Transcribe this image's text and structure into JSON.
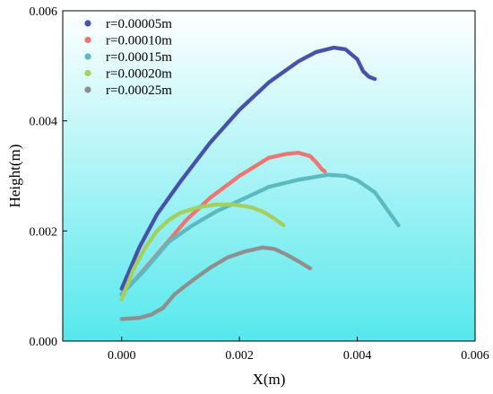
{
  "chart_data": {
    "type": "scatter",
    "xlabel": "X(m)",
    "ylabel": "Height(m)",
    "xlim": [
      -0.001,
      0.006
    ],
    "ylim": [
      0.0,
      0.006
    ],
    "xticks": [
      "0.000",
      "0.002",
      "0.004",
      "0.006"
    ],
    "yticks": [
      "0.000",
      "0.002",
      "0.004",
      "0.006"
    ],
    "xtick_values": [
      0.0,
      0.002,
      0.004,
      0.006
    ],
    "ytick_values": [
      0.0,
      0.002,
      0.004,
      0.006
    ],
    "grid": false,
    "legend_position": "top-left",
    "background": {
      "top": "#ffffff",
      "bottom": "#55e8ec"
    },
    "series": [
      {
        "name": "r=0.00005m",
        "color": "#4650a8",
        "points": [
          [
            0.0,
            0.00095
          ],
          [
            0.0003,
            0.0017
          ],
          [
            0.0006,
            0.0023
          ],
          [
            0.001,
            0.0029
          ],
          [
            0.0015,
            0.0036
          ],
          [
            0.002,
            0.0042
          ],
          [
            0.0025,
            0.0047
          ],
          [
            0.003,
            0.00508
          ],
          [
            0.0033,
            0.00525
          ],
          [
            0.0036,
            0.00533
          ],
          [
            0.0038,
            0.0053
          ],
          [
            0.004,
            0.00512
          ],
          [
            0.0041,
            0.0049
          ],
          [
            0.0042,
            0.0048
          ],
          [
            0.0043,
            0.00476
          ]
        ]
      },
      {
        "name": "r=0.00010m",
        "color": "#ee7470",
        "points": [
          [
            0.0,
            0.00085
          ],
          [
            0.0003,
            0.0012
          ],
          [
            0.0007,
            0.0017
          ],
          [
            0.0011,
            0.0022
          ],
          [
            0.0015,
            0.0026
          ],
          [
            0.002,
            0.003
          ],
          [
            0.0025,
            0.00333
          ],
          [
            0.0028,
            0.0034
          ],
          [
            0.003,
            0.00342
          ],
          [
            0.0032,
            0.00336
          ],
          [
            0.0033,
            0.00325
          ],
          [
            0.0034,
            0.00312
          ],
          [
            0.00345,
            0.00308
          ]
        ]
      },
      {
        "name": "r=0.00015m",
        "color": "#5bbac0",
        "points": [
          [
            0.0,
            0.00085
          ],
          [
            0.0004,
            0.0013
          ],
          [
            0.0008,
            0.0018
          ],
          [
            0.0012,
            0.0021
          ],
          [
            0.0016,
            0.00235
          ],
          [
            0.002,
            0.00255
          ],
          [
            0.0025,
            0.0028
          ],
          [
            0.003,
            0.00293
          ],
          [
            0.0035,
            0.00302
          ],
          [
            0.0038,
            0.003
          ],
          [
            0.004,
            0.00292
          ],
          [
            0.0043,
            0.0027
          ],
          [
            0.0045,
            0.0024
          ],
          [
            0.0047,
            0.0021
          ]
        ]
      },
      {
        "name": "r=0.00020m",
        "color": "#a6cf5c",
        "points": [
          [
            0.0,
            0.00075
          ],
          [
            0.0002,
            0.0013
          ],
          [
            0.0004,
            0.0017
          ],
          [
            0.0006,
            0.002
          ],
          [
            0.0008,
            0.0022
          ],
          [
            0.001,
            0.00233
          ],
          [
            0.0013,
            0.00243
          ],
          [
            0.0016,
            0.00248
          ],
          [
            0.0019,
            0.00248
          ],
          [
            0.0022,
            0.00243
          ],
          [
            0.0024,
            0.00235
          ],
          [
            0.0026,
            0.00222
          ],
          [
            0.00275,
            0.0021
          ]
        ]
      },
      {
        "name": "r=0.00025m",
        "color": "#8e8e8e",
        "points": [
          [
            0.0,
            0.0004
          ],
          [
            0.0003,
            0.00042
          ],
          [
            0.0005,
            0.00048
          ],
          [
            0.0007,
            0.0006
          ],
          [
            0.0009,
            0.00085
          ],
          [
            0.0012,
            0.0011
          ],
          [
            0.0015,
            0.00133
          ],
          [
            0.0018,
            0.00152
          ],
          [
            0.0021,
            0.00163
          ],
          [
            0.0024,
            0.0017
          ],
          [
            0.0026,
            0.00167
          ],
          [
            0.0028,
            0.00157
          ],
          [
            0.003,
            0.00145
          ],
          [
            0.0032,
            0.00132
          ]
        ]
      }
    ]
  }
}
